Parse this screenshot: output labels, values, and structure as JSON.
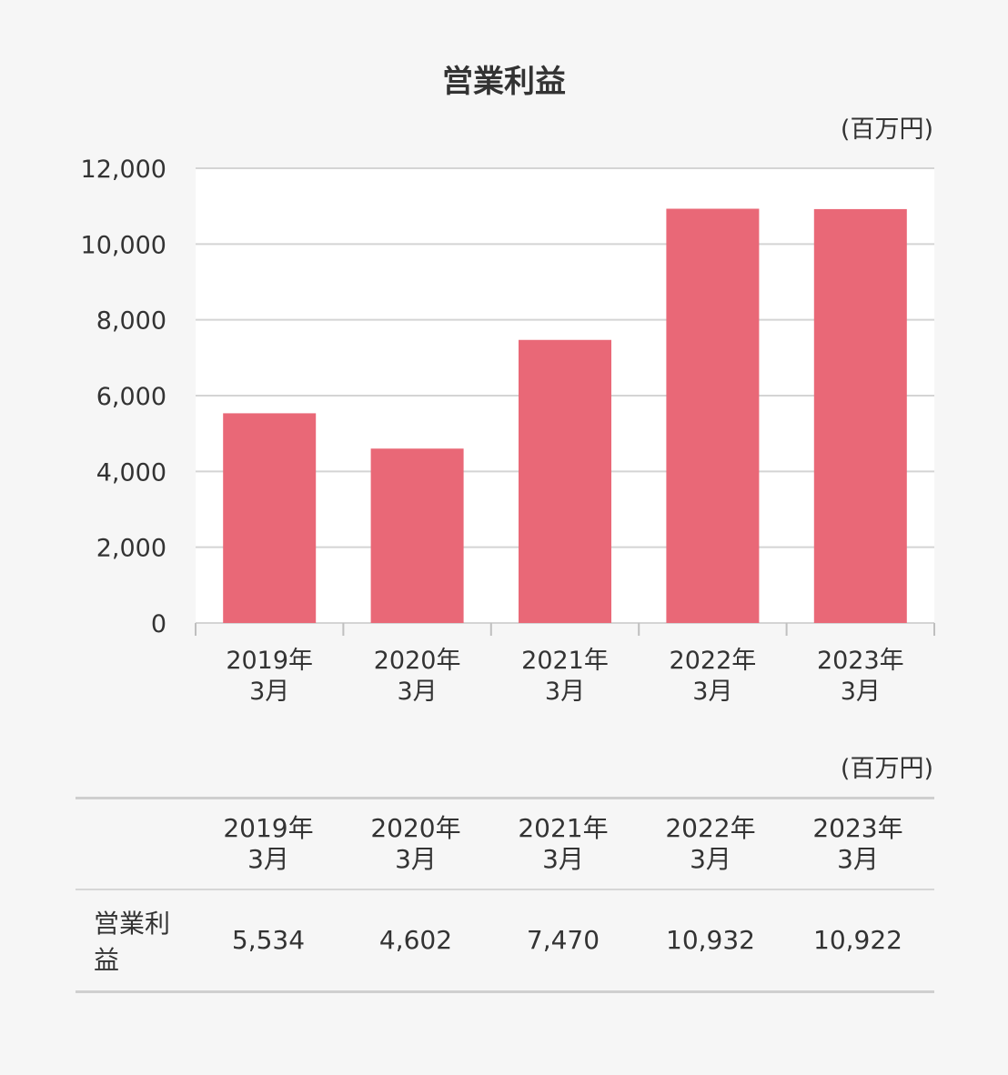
{
  "title": "営業利益",
  "chart_unit": "(百万円)",
  "table_unit": "(百万円)",
  "colors": {
    "bar": "#e96877",
    "grid": "#d4d4d4",
    "plot_bg": "#ffffff"
  },
  "chart_data": {
    "type": "bar",
    "title": "営業利益",
    "categories": [
      "2019年\n3月",
      "2020年\n3月",
      "2021年\n3月",
      "2022年\n3月",
      "2023年\n3月"
    ],
    "values": [
      5534,
      4602,
      7470,
      10932,
      10922
    ],
    "ylim": [
      0,
      12000
    ],
    "yticks": [
      "0",
      "2,000",
      "4,000",
      "6,000",
      "8,000",
      "10,000",
      "12,000"
    ],
    "ytick_values": [
      0,
      2000,
      4000,
      6000,
      8000,
      10000,
      12000
    ],
    "grid": true
  },
  "table": {
    "headers": [
      "2019年\n3月",
      "2020年\n3月",
      "2021年\n3月",
      "2022年\n3月",
      "2023年\n3月"
    ],
    "rows": [
      {
        "label": "営業利益",
        "values": [
          "5,534",
          "4,602",
          "7,470",
          "10,932",
          "10,922"
        ]
      }
    ]
  }
}
